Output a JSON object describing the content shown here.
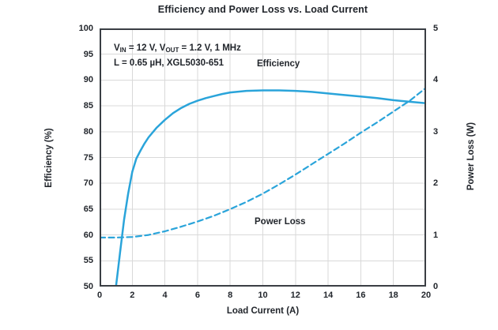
{
  "title": "Efficiency and Power Loss vs. Load Current",
  "annotation": {
    "line1": [
      {
        "text": "V"
      },
      {
        "sub": "IN"
      },
      {
        "text": " = 12 V, V"
      },
      {
        "sub": "OUT"
      },
      {
        "text": " = 1.2 V, 1 MHz"
      }
    ],
    "line2": [
      {
        "text": "L = 0.65 µH, XGL5030-651"
      }
    ]
  },
  "colors": {
    "accent": "#2aa4da",
    "text": "#22262c",
    "grid": "#d9d9d9",
    "frame": "#3a3e44",
    "background": "#ffffff"
  },
  "chart_data": {
    "type": "line",
    "title": "Efficiency and Power Loss vs. Load Current",
    "xlabel": "Load Current (A)",
    "ylabel_left": "Efficiency (%)",
    "ylabel_right": "Power Loss (W)",
    "grid": true,
    "x_axis": {
      "range": [
        0,
        20
      ],
      "ticks": [
        0,
        2,
        4,
        6,
        8,
        10,
        12,
        14,
        16,
        18,
        20
      ]
    },
    "left_axis": {
      "range": [
        50,
        100
      ],
      "ticks": [
        50,
        55,
        60,
        65,
        70,
        75,
        80,
        85,
        90,
        95,
        100
      ]
    },
    "right_axis": {
      "range": [
        0,
        5
      ],
      "ticks": [
        0,
        1,
        2,
        3,
        4,
        5
      ]
    },
    "series": [
      {
        "name": "Efficiency",
        "label": "Efficiency",
        "axis": "left",
        "style": "solid",
        "x": [
          1,
          1.1,
          1.25,
          1.5,
          1.75,
          2,
          2.25,
          2.5,
          2.75,
          3,
          3.5,
          4,
          4.5,
          5,
          5.5,
          6,
          6.5,
          7,
          7.5,
          8,
          9,
          10,
          11,
          12,
          13,
          14,
          15,
          16,
          17,
          18,
          19,
          20
        ],
        "y": [
          50,
          52.5,
          56.5,
          63,
          68,
          72.2,
          74.8,
          76.3,
          77.7,
          78.9,
          80.8,
          82.3,
          83.6,
          84.6,
          85.4,
          86,
          86.5,
          86.9,
          87.3,
          87.6,
          87.9,
          88,
          88,
          87.9,
          87.7,
          87.4,
          87.1,
          86.8,
          86.5,
          86.1,
          85.8,
          85.5
        ]
      },
      {
        "name": "Power Loss",
        "label": "Power Loss",
        "axis": "right",
        "style": "dashed",
        "x": [
          0,
          1,
          2,
          3,
          4,
          5,
          6,
          7,
          8,
          9,
          10,
          11,
          12,
          13,
          14,
          15,
          16,
          17,
          18,
          19,
          20
        ],
        "y": [
          0.95,
          0.95,
          0.96,
          1.0,
          1.07,
          1.16,
          1.26,
          1.37,
          1.5,
          1.64,
          1.8,
          1.98,
          2.17,
          2.37,
          2.57,
          2.77,
          2.98,
          3.18,
          3.39,
          3.6,
          3.85
        ]
      }
    ]
  }
}
